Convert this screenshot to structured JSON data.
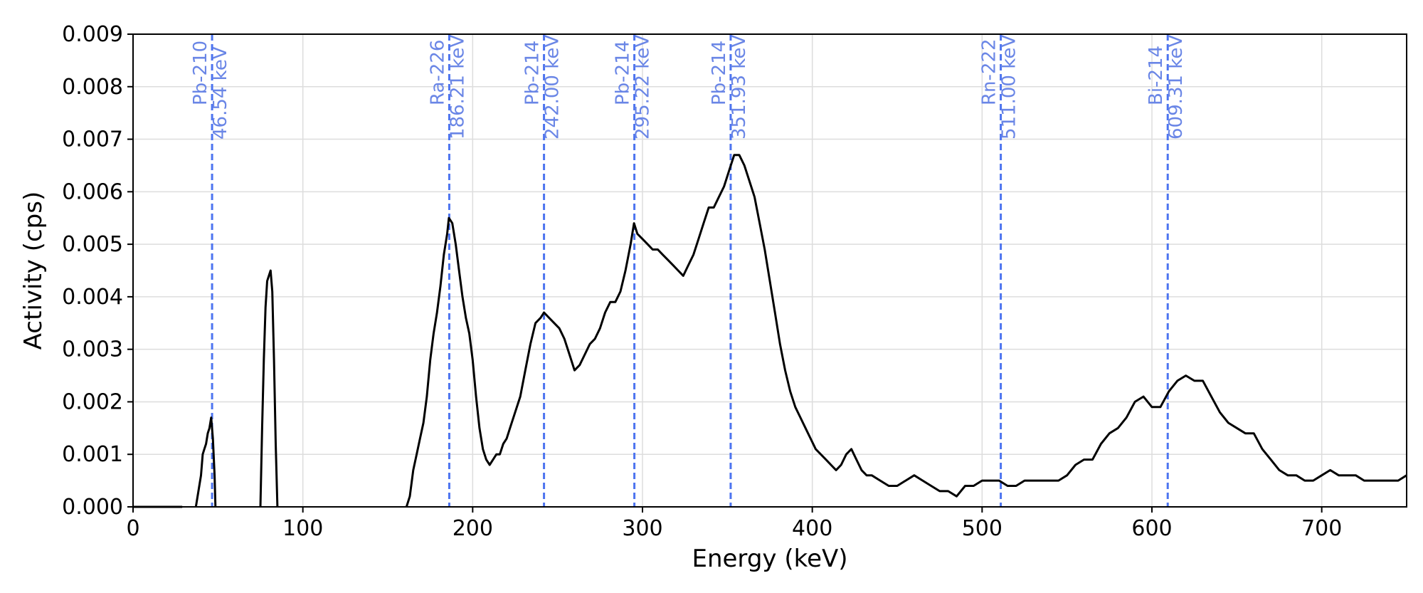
{
  "chart_data": {
    "type": "line",
    "xlabel": "Energy (keV)",
    "ylabel": "Activity (cps)",
    "xlim": [
      0,
      750
    ],
    "ylim": [
      0,
      0.009
    ],
    "grid": true,
    "x_ticks": [
      {
        "value": 0,
        "label": "0"
      },
      {
        "value": 100,
        "label": "100"
      },
      {
        "value": 200,
        "label": "200"
      },
      {
        "value": 300,
        "label": "300"
      },
      {
        "value": 400,
        "label": "400"
      },
      {
        "value": 500,
        "label": "500"
      },
      {
        "value": 600,
        "label": "600"
      },
      {
        "value": 700,
        "label": "700"
      }
    ],
    "y_ticks": [
      {
        "value": 0.0,
        "label": "0.000"
      },
      {
        "value": 0.001,
        "label": "0.001"
      },
      {
        "value": 0.002,
        "label": "0.002"
      },
      {
        "value": 0.003,
        "label": "0.003"
      },
      {
        "value": 0.004,
        "label": "0.004"
      },
      {
        "value": 0.005,
        "label": "0.005"
      },
      {
        "value": 0.006,
        "label": "0.006"
      },
      {
        "value": 0.007,
        "label": "0.007"
      },
      {
        "value": 0.008,
        "label": "0.008"
      },
      {
        "value": 0.009,
        "label": "0.009"
      }
    ],
    "peak_markers": [
      {
        "energy": 46.54,
        "isotope": "Pb-210",
        "energy_label": "46.54 keV"
      },
      {
        "energy": 186.21,
        "isotope": "Ra-226",
        "energy_label": "186.21 keV"
      },
      {
        "energy": 242.0,
        "isotope": "Pb-214",
        "energy_label": "242.00 keV"
      },
      {
        "energy": 295.22,
        "isotope": "Pb-214",
        "energy_label": "295.22 keV"
      },
      {
        "energy": 351.93,
        "isotope": "Pb-214",
        "energy_label": "351.93 keV"
      },
      {
        "energy": 511.0,
        "isotope": "Rn-222",
        "energy_label": "511.00 keV"
      },
      {
        "energy": 609.31,
        "isotope": "Bi-214",
        "energy_label": "609.31 keV"
      }
    ],
    "series": [
      {
        "color": "#000000",
        "segments": [
          [
            [
              0,
              0
            ],
            [
              29,
              0
            ]
          ],
          [
            [
              37,
              0
            ],
            [
              38,
              0.0002
            ],
            [
              40,
              0.0006
            ],
            [
              41,
              0.001
            ],
            [
              42,
              0.0011
            ],
            [
              43,
              0.0012
            ],
            [
              44,
              0.0014
            ],
            [
              45,
              0.0015
            ],
            [
              46,
              0.0017
            ],
            [
              47,
              0.0013
            ],
            [
              48,
              0.0006
            ],
            [
              48.5,
              0
            ]
          ],
          [
            [
              75,
              0
            ],
            [
              76,
              0.0015
            ],
            [
              77,
              0.0028
            ],
            [
              78,
              0.0038
            ],
            [
              79,
              0.0043
            ],
            [
              80,
              0.0044
            ],
            [
              81,
              0.0045
            ],
            [
              82,
              0.0041
            ],
            [
              83,
              0.0028
            ],
            [
              84,
              0.0012
            ],
            [
              85,
              0
            ]
          ],
          [
            [
              161,
              0
            ],
            [
              163,
              0.0002
            ],
            [
              165,
              0.0007
            ],
            [
              167,
              0.001
            ],
            [
              169,
              0.0013
            ],
            [
              171,
              0.0016
            ],
            [
              173,
              0.0021
            ],
            [
              175,
              0.0028
            ],
            [
              177,
              0.0033
            ],
            [
              179,
              0.0037
            ],
            [
              181,
              0.0042
            ],
            [
              183,
              0.0048
            ],
            [
              185,
              0.0052
            ],
            [
              186,
              0.0055
            ],
            [
              188,
              0.0054
            ],
            [
              190,
              0.005
            ],
            [
              192,
              0.0045
            ],
            [
              194,
              0.004
            ],
            [
              196,
              0.0036
            ],
            [
              198,
              0.0033
            ],
            [
              200,
              0.0028
            ],
            [
              202,
              0.0021
            ],
            [
              204,
              0.0015
            ],
            [
              206,
              0.0011
            ],
            [
              208,
              0.0009
            ],
            [
              210,
              0.0008
            ],
            [
              212,
              0.0009
            ],
            [
              214,
              0.001
            ],
            [
              216,
              0.001
            ],
            [
              218,
              0.0012
            ],
            [
              220,
              0.0013
            ],
            [
              222,
              0.0015
            ],
            [
              225,
              0.0018
            ],
            [
              228,
              0.0021
            ],
            [
              231,
              0.0026
            ],
            [
              234,
              0.0031
            ],
            [
              237,
              0.0035
            ],
            [
              240,
              0.0036
            ],
            [
              242,
              0.0037
            ],
            [
              245,
              0.0036
            ],
            [
              248,
              0.0035
            ],
            [
              251,
              0.0034
            ],
            [
              254,
              0.0032
            ],
            [
              257,
              0.0029
            ],
            [
              260,
              0.0026
            ],
            [
              263,
              0.0027
            ],
            [
              266,
              0.0029
            ],
            [
              269,
              0.0031
            ],
            [
              272,
              0.0032
            ],
            [
              275,
              0.0034
            ],
            [
              278,
              0.0037
            ],
            [
              281,
              0.0039
            ],
            [
              284,
              0.0039
            ],
            [
              287,
              0.0041
            ],
            [
              290,
              0.0045
            ],
            [
              293,
              0.005
            ],
            [
              295,
              0.0054
            ],
            [
              297,
              0.0052
            ],
            [
              300,
              0.0051
            ],
            [
              303,
              0.005
            ],
            [
              306,
              0.0049
            ],
            [
              309,
              0.0049
            ],
            [
              312,
              0.0048
            ],
            [
              315,
              0.0047
            ],
            [
              318,
              0.0046
            ],
            [
              321,
              0.0045
            ],
            [
              324,
              0.0044
            ],
            [
              327,
              0.0046
            ],
            [
              330,
              0.0048
            ],
            [
              333,
              0.0051
            ],
            [
              336,
              0.0054
            ],
            [
              339,
              0.0057
            ],
            [
              342,
              0.0057
            ],
            [
              345,
              0.0059
            ],
            [
              348,
              0.0061
            ],
            [
              351,
              0.0064
            ],
            [
              354,
              0.0067
            ],
            [
              357,
              0.0067
            ],
            [
              360,
              0.0065
            ],
            [
              363,
              0.0062
            ],
            [
              366,
              0.0059
            ],
            [
              369,
              0.0054
            ],
            [
              372,
              0.0049
            ],
            [
              375,
              0.0043
            ],
            [
              378,
              0.0037
            ],
            [
              381,
              0.0031
            ],
            [
              384,
              0.0026
            ],
            [
              387,
              0.0022
            ],
            [
              390,
              0.0019
            ],
            [
              393,
              0.0017
            ],
            [
              396,
              0.0015
            ],
            [
              399,
              0.0013
            ],
            [
              402,
              0.0011
            ],
            [
              405,
              0.001
            ],
            [
              408,
              0.0009
            ],
            [
              411,
              0.0008
            ],
            [
              414,
              0.0007
            ],
            [
              417,
              0.0008
            ],
            [
              420,
              0.001
            ],
            [
              423,
              0.0011
            ],
            [
              426,
              0.0009
            ],
            [
              429,
              0.0007
            ],
            [
              432,
              0.0006
            ],
            [
              435,
              0.0006
            ],
            [
              440,
              0.0005
            ],
            [
              445,
              0.0004
            ],
            [
              450,
              0.0004
            ],
            [
              455,
              0.0005
            ],
            [
              460,
              0.0006
            ],
            [
              465,
              0.0005
            ],
            [
              470,
              0.0004
            ],
            [
              475,
              0.0003
            ],
            [
              480,
              0.0003
            ],
            [
              485,
              0.0002
            ],
            [
              490,
              0.0004
            ],
            [
              495,
              0.0004
            ],
            [
              500,
              0.0005
            ],
            [
              505,
              0.0005
            ],
            [
              510,
              0.0005
            ],
            [
              515,
              0.0004
            ],
            [
              520,
              0.0004
            ],
            [
              525,
              0.0005
            ],
            [
              530,
              0.0005
            ],
            [
              535,
              0.0005
            ],
            [
              540,
              0.0005
            ],
            [
              545,
              0.0005
            ],
            [
              550,
              0.0006
            ],
            [
              555,
              0.0008
            ],
            [
              560,
              0.0009
            ],
            [
              565,
              0.0009
            ],
            [
              570,
              0.0012
            ],
            [
              575,
              0.0014
            ],
            [
              580,
              0.0015
            ],
            [
              585,
              0.0017
            ],
            [
              590,
              0.002
            ],
            [
              595,
              0.0021
            ],
            [
              600,
              0.0019
            ],
            [
              605,
              0.0019
            ],
            [
              610,
              0.0022
            ],
            [
              615,
              0.0024
            ],
            [
              620,
              0.0025
            ],
            [
              625,
              0.0024
            ],
            [
              630,
              0.0024
            ],
            [
              635,
              0.0021
            ],
            [
              640,
              0.0018
            ],
            [
              645,
              0.0016
            ],
            [
              650,
              0.0015
            ],
            [
              655,
              0.0014
            ],
            [
              660,
              0.0014
            ],
            [
              665,
              0.0011
            ],
            [
              670,
              0.0009
            ],
            [
              675,
              0.0007
            ],
            [
              680,
              0.0006
            ],
            [
              685,
              0.0006
            ],
            [
              690,
              0.0005
            ],
            [
              695,
              0.0005
            ],
            [
              700,
              0.0006
            ],
            [
              705,
              0.0007
            ],
            [
              710,
              0.0006
            ],
            [
              715,
              0.0006
            ],
            [
              720,
              0.0006
            ],
            [
              725,
              0.0005
            ],
            [
              730,
              0.0005
            ],
            [
              735,
              0.0005
            ],
            [
              740,
              0.0005
            ],
            [
              745,
              0.0005
            ],
            [
              750,
              0.0006
            ]
          ]
        ]
      }
    ]
  }
}
